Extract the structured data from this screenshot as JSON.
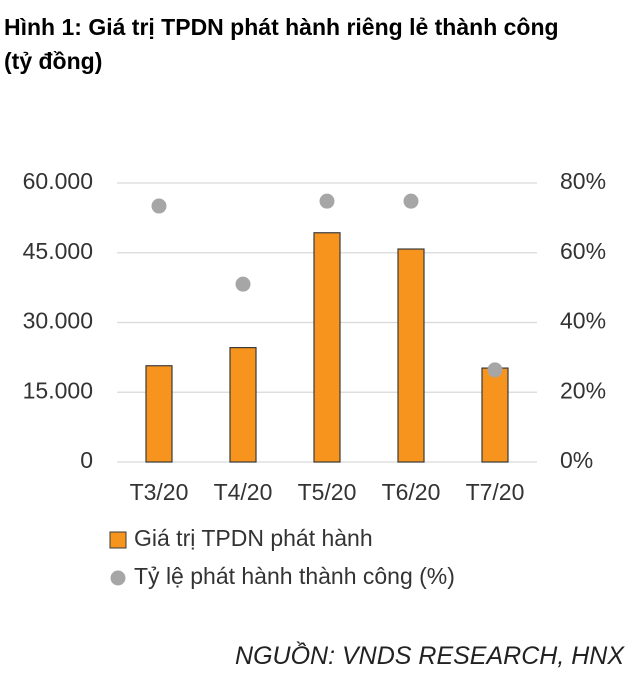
{
  "chart_data": {
    "type": "bar",
    "title": "Hình 1: Giá trị TPDN phát hành riêng lẻ thành công (tỷ đồng)",
    "categories": [
      "T3/20",
      "T4/20",
      "T5/20",
      "T6/20",
      "T7/20"
    ],
    "series": [
      {
        "name": "Giá trị TPDN phát hành",
        "type": "bar",
        "color": "#f7941d",
        "values": [
          20700,
          24600,
          49300,
          45800,
          20200
        ]
      },
      {
        "name": "Tỷ lệ phát hành thành công (%)",
        "type": "scatter",
        "axis": "y2",
        "color": "#a6a6a6",
        "values": [
          73.4,
          51,
          74.8,
          74.8,
          26.4
        ]
      }
    ],
    "ylim": [
      0,
      60000
    ],
    "yticks": [
      0,
      {
        "value": 15000,
        "label": "15.000"
      },
      {
        "value": 30000,
        "label": "30.000"
      },
      {
        "value": 45000,
        "label": "45.000"
      },
      {
        "value": 60000,
        "label": "60.000"
      }
    ],
    "y2lim": [
      0,
      80
    ],
    "y2ticks": [
      {
        "value": 0,
        "label": "0%"
      },
      {
        "value": 20,
        "label": "20%"
      },
      {
        "value": 40,
        "label": "40%"
      },
      {
        "value": 60,
        "label": "60%"
      },
      {
        "value": 80,
        "label": "80%"
      }
    ],
    "grid": true,
    "source": "NGUỒN: VNDS RESEARCH, HNX"
  }
}
